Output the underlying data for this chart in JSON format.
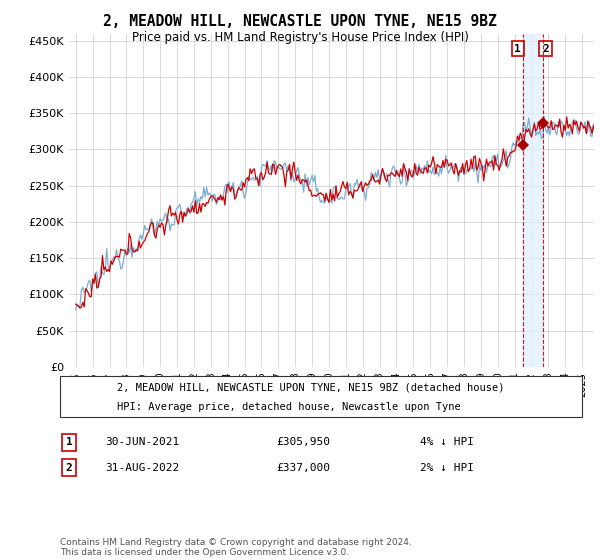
{
  "title": "2, MEADOW HILL, NEWCASTLE UPON TYNE, NE15 9BZ",
  "subtitle": "Price paid vs. HM Land Registry's House Price Index (HPI)",
  "yticks": [
    0,
    50000,
    100000,
    150000,
    200000,
    250000,
    300000,
    350000,
    400000,
    450000
  ],
  "ytick_labels": [
    "£0",
    "£50K",
    "£100K",
    "£150K",
    "£200K",
    "£250K",
    "£300K",
    "£350K",
    "£400K",
    "£450K"
  ],
  "ylim": [
    0,
    460000
  ],
  "legend_line1": "2, MEADOW HILL, NEWCASTLE UPON TYNE, NE15 9BZ (detached house)",
  "legend_line2": "HPI: Average price, detached house, Newcastle upon Tyne",
  "annotation1_date": "30-JUN-2021",
  "annotation1_price": "£305,950",
  "annotation1_hpi": "4% ↓ HPI",
  "annotation2_date": "31-AUG-2022",
  "annotation2_price": "£337,000",
  "annotation2_hpi": "2% ↓ HPI",
  "footer": "Contains HM Land Registry data © Crown copyright and database right 2024.\nThis data is licensed under the Open Government Licence v3.0.",
  "hpi_color": "#7aadd4",
  "price_color": "#cc0000",
  "marker_color": "#aa0000",
  "vline_color": "#cc0000",
  "shade_color": "#ddeeff",
  "annotation_box_color": "#cc0000",
  "background_color": "#ffffff",
  "grid_color": "#cccccc",
  "sale1_t": 2021.5,
  "sale1_price": 305950,
  "sale2_t": 2022.667,
  "sale2_price": 337000,
  "xstart": 1995,
  "xend": 2025
}
